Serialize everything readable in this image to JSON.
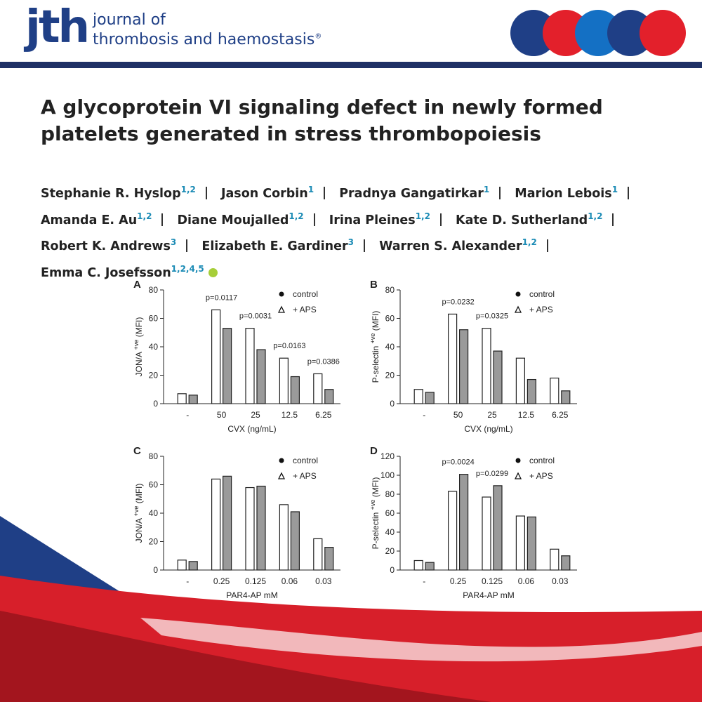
{
  "header": {
    "logo": "jth",
    "journal_line1": "journal of",
    "journal_line2": "thrombosis and haemostasis",
    "mark": "®"
  },
  "title": "A glycoprotein VI signaling defect in newly formed platelets generated in stress thrombopoiesis",
  "authors": [
    {
      "name": "Stephanie R. Hyslop",
      "affil": "1,2"
    },
    {
      "name": "Jason Corbin",
      "affil": "1"
    },
    {
      "name": "Pradnya Gangatirkar",
      "affil": "1"
    },
    {
      "name": "Marion Lebois",
      "affil": "1"
    },
    {
      "name": "Amanda E. Au",
      "affil": "1,2"
    },
    {
      "name": "Diane Moujalled",
      "affil": "1,2"
    },
    {
      "name": "Irina Pleines",
      "affil": "1,2"
    },
    {
      "name": "Kate D. Sutherland",
      "affil": "1,2"
    },
    {
      "name": "Robert K. Andrews",
      "affil": "3"
    },
    {
      "name": "Elizabeth E. Gardiner",
      "affil": "3"
    },
    {
      "name": "Warren S. Alexander",
      "affil": "1,2"
    },
    {
      "name": "Emma C. Josefsson",
      "affil": "1,2,4,5"
    }
  ],
  "chart_data": [
    {
      "type": "bar",
      "panel": "A",
      "y_label": [
        "JON/A ",
        "+ve",
        " (MFI)"
      ],
      "x_label": "CVX (ng/mL)",
      "categories": [
        "-",
        "50",
        "25",
        "12.5",
        "6.25"
      ],
      "series": [
        {
          "name": "control",
          "color": "#ffffff",
          "marker": "circle",
          "values": [
            7,
            66,
            53,
            32,
            21
          ]
        },
        {
          "name": "+ APS",
          "color": "#9a9a9a",
          "marker": "triangle",
          "values": [
            6,
            53,
            38,
            19,
            10
          ]
        }
      ],
      "ylim": [
        0,
        80
      ],
      "yticks": [
        0,
        20,
        40,
        60,
        80
      ],
      "annotations": [
        "p=0.0117",
        "p=0.0031",
        "p=0.0163",
        "p=0.0386"
      ]
    },
    {
      "type": "bar",
      "panel": "B",
      "y_label": [
        "P-selectin ",
        "+ve",
        " (MFI)"
      ],
      "x_label": "CVX (ng/mL)",
      "categories": [
        "-",
        "50",
        "25",
        "12.5",
        "6.25"
      ],
      "series": [
        {
          "name": "control",
          "color": "#ffffff",
          "marker": "circle",
          "values": [
            10,
            63,
            53,
            32,
            18
          ]
        },
        {
          "name": "+ APS",
          "color": "#9a9a9a",
          "marker": "triangle",
          "values": [
            8,
            52,
            37,
            17,
            9
          ]
        }
      ],
      "ylim": [
        0,
        80
      ],
      "yticks": [
        0,
        20,
        40,
        60,
        80
      ],
      "annotations": [
        "p=0.0232",
        "p=0.0325"
      ]
    },
    {
      "type": "bar",
      "panel": "C",
      "y_label": [
        "JON/A ",
        "+ve",
        " (MFI)"
      ],
      "x_label": "PAR4-AP mM",
      "categories": [
        "-",
        "0.25",
        "0.125",
        "0.06",
        "0.03"
      ],
      "series": [
        {
          "name": "control",
          "color": "#ffffff",
          "marker": "circle",
          "values": [
            7,
            64,
            58,
            46,
            22
          ]
        },
        {
          "name": "+ APS",
          "color": "#9a9a9a",
          "marker": "triangle",
          "values": [
            6,
            66,
            59,
            41,
            16
          ]
        }
      ],
      "ylim": [
        0,
        80
      ],
      "yticks": [
        0,
        20,
        40,
        60,
        80
      ],
      "annotations": []
    },
    {
      "type": "bar",
      "panel": "D",
      "y_label": [
        "P-selectin ",
        "+ve",
        " (MFI)"
      ],
      "x_label": "PAR4-AP mM",
      "categories": [
        "-",
        "0.25",
        "0.125",
        "0.06",
        "0.03"
      ],
      "series": [
        {
          "name": "control",
          "color": "#ffffff",
          "marker": "circle",
          "values": [
            10,
            83,
            77,
            57,
            22
          ]
        },
        {
          "name": "+ APS",
          "color": "#9a9a9a",
          "marker": "triangle",
          "values": [
            8,
            101,
            89,
            56,
            15
          ]
        }
      ],
      "ylim": [
        0,
        120
      ],
      "yticks": [
        0,
        20,
        40,
        60,
        80,
        100,
        120
      ],
      "annotations": [
        "p=0.0024",
        "p=0.0299"
      ]
    }
  ]
}
